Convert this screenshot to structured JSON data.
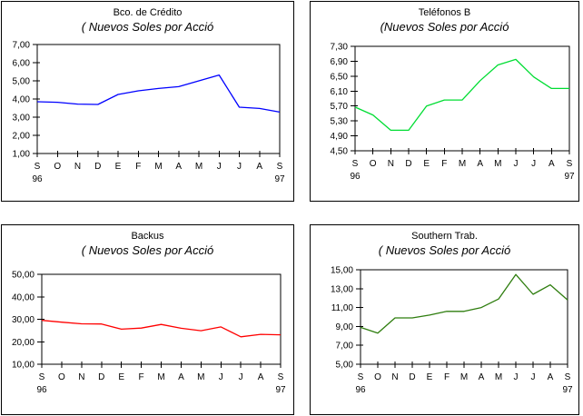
{
  "page": {
    "description": "Four stock price line charts, Peruvian shares, Sep 96 - Sep 97"
  },
  "chart_data": [
    {
      "type": "line",
      "title": "Bco. de Crédito",
      "subtitle": "( Nuevos Soles por Acció",
      "color": "#0000ff",
      "legend": "none",
      "grid": false,
      "categories": [
        "S",
        "O",
        "N",
        "D",
        "E",
        "F",
        "M",
        "A",
        "M",
        "J",
        "J",
        "A",
        "S"
      ],
      "year_start": "96",
      "year_end": "97",
      "ylim": [
        1.0,
        7.0
      ],
      "ytick_labels": [
        "7,00",
        "6,00",
        "5,00",
        "4,00",
        "3,00",
        "2,00",
        "1,00"
      ],
      "values": [
        3.85,
        3.82,
        3.72,
        3.7,
        4.25,
        4.45,
        4.58,
        4.68,
        5.0,
        5.32,
        3.55,
        3.48,
        3.28
      ]
    },
    {
      "type": "line",
      "title": "Teléfonos B",
      "subtitle": "(Nuevos Soles por Acció",
      "color": "#00dd33",
      "legend": "none",
      "grid": false,
      "categories": [
        "S",
        "O",
        "N",
        "D",
        "E",
        "F",
        "M",
        "A",
        "M",
        "J",
        "J",
        "A",
        "S"
      ],
      "year_start": "96",
      "year_end": "97",
      "ylim": [
        4.5,
        7.3
      ],
      "ytick_labels": [
        "7,30",
        "6,90",
        "6,50",
        "6,10",
        "5,70",
        "5,30",
        "4,90",
        "4,50"
      ],
      "values": [
        5.67,
        5.46,
        5.05,
        5.05,
        5.7,
        5.86,
        5.86,
        6.38,
        6.8,
        6.95,
        6.48,
        6.17,
        6.17
      ]
    },
    {
      "type": "line",
      "title": "Backus",
      "subtitle": "( Nuevos Soles por Acció",
      "color": "#ff0000",
      "legend": "none",
      "grid": false,
      "categories": [
        "S",
        "O",
        "N",
        "D",
        "E",
        "F",
        "M",
        "A",
        "M",
        "J",
        "J",
        "A",
        "S"
      ],
      "year_start": "96",
      "year_end": "97",
      "ylim": [
        10.0,
        50.0
      ],
      "ytick_labels": [
        "50,00",
        "40,00",
        "30,00",
        "20,00",
        "10,00"
      ],
      "values": [
        29.5,
        28.7,
        28.0,
        27.9,
        25.6,
        26.1,
        27.7,
        26.0,
        24.9,
        26.6,
        22.2,
        23.3,
        23.1
      ]
    },
    {
      "type": "line",
      "title": "Southern Trab.",
      "subtitle": "( Nuevos Soles por Acció",
      "color": "#2e7d0e",
      "legend": "none",
      "grid": false,
      "categories": [
        "S",
        "O",
        "N",
        "D",
        "E",
        "F",
        "M",
        "A",
        "M",
        "J",
        "J",
        "A",
        "S"
      ],
      "year_start": "96",
      "year_end": "97",
      "ylim": [
        5.0,
        15.0
      ],
      "ytick_labels": [
        "15,00",
        "13,00",
        "11,00",
        "9,00",
        "7,00",
        "5,00"
      ],
      "values": [
        8.9,
        8.3,
        9.9,
        9.9,
        10.2,
        10.6,
        10.6,
        11.0,
        11.9,
        14.5,
        12.4,
        13.4,
        11.8
      ]
    }
  ]
}
